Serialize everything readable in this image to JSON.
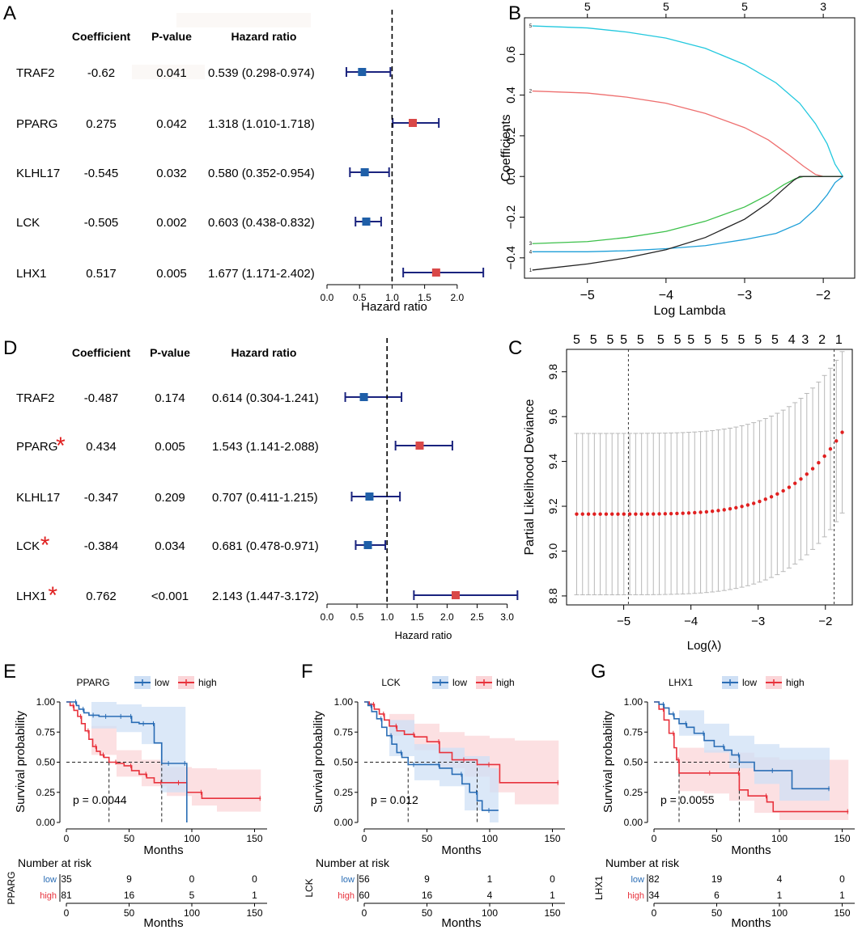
{
  "colors": {
    "low_square": "#1f5fa8",
    "high_square": "#d94848",
    "ci_line": "#1a237e",
    "km_low": "#2a6db5",
    "km_high": "#e8323c",
    "band_low": "#cfe0f5",
    "band_high": "#fbd5d8",
    "cv_dot": "#e02020",
    "cv_bar": "#b8b8b8",
    "star": "#e02020"
  },
  "chart_data": [
    {
      "panel": "A",
      "type": "forest",
      "headers": [
        "Coefficient",
        "P-value",
        "Hazard ratio"
      ],
      "rows": [
        {
          "gene": "TRAF2",
          "coef": "-0.62",
          "p": "0.041",
          "hr_text": "0.539 (0.298-0.974)",
          "hr": 0.539,
          "lo": 0.298,
          "hi": 0.974,
          "dir": "low",
          "star": false
        },
        {
          "gene": "PPARG",
          "coef": "0.275",
          "p": "0.042",
          "hr_text": "1.318 (1.010-1.718)",
          "hr": 1.318,
          "lo": 1.01,
          "hi": 1.718,
          "dir": "high",
          "star": false
        },
        {
          "gene": "KLHL17",
          "coef": "-0.545",
          "p": "0.032",
          "hr_text": "0.580 (0.352-0.954)",
          "hr": 0.58,
          "lo": 0.352,
          "hi": 0.954,
          "dir": "low",
          "star": false
        },
        {
          "gene": "LCK",
          "coef": "-0.505",
          "p": "0.002",
          "hr_text": "0.603 (0.438-0.832)",
          "hr": 0.603,
          "lo": 0.438,
          "hi": 0.832,
          "dir": "low",
          "star": false
        },
        {
          "gene": "LHX1",
          "coef": "0.517",
          "p": "0.005",
          "hr_text": "1.677 (1.171-2.402)",
          "hr": 1.677,
          "lo": 1.171,
          "hi": 2.402,
          "dir": "high",
          "star": false
        }
      ],
      "xlim": [
        0,
        2.4
      ],
      "ticks": [
        "0.0",
        "0.5",
        "1.0",
        "1.5",
        "2.0"
      ],
      "tick_values": [
        0,
        0.5,
        1,
        1.5,
        2
      ],
      "xlabel": "Hazard ratio",
      "ref": 1
    },
    {
      "panel": "B",
      "type": "line",
      "xlabel": "Log Lambda",
      "ylabel": "Coefficients",
      "xlim": [
        -5.8,
        -1.6
      ],
      "ylim": [
        -0.5,
        0.78
      ],
      "xticks": [
        -5,
        -4,
        -3,
        -2
      ],
      "xtick_labels": [
        "−5",
        "−4",
        "−3",
        "−2"
      ],
      "yticks": [
        -0.4,
        -0.2,
        0.0,
        0.2,
        0.4,
        0.6
      ],
      "ytick_labels": [
        "−0.4",
        "−0.2",
        "0.0",
        "0.2",
        "0.4",
        "0.6"
      ],
      "top_ticks": [
        -5,
        -4,
        -3,
        -2
      ],
      "top_labels": [
        "5",
        "5",
        "5",
        "3"
      ],
      "series": [
        {
          "name": "5",
          "color": "#22c8de",
          "x": [
            -5.7,
            -5.0,
            -4.5,
            -4.0,
            -3.5,
            -3.0,
            -2.6,
            -2.3,
            -2.1,
            -1.95,
            -1.85,
            -1.75
          ],
          "y": [
            0.74,
            0.73,
            0.71,
            0.68,
            0.63,
            0.55,
            0.46,
            0.36,
            0.26,
            0.16,
            0.06,
            0.0
          ]
        },
        {
          "name": "2",
          "color": "#ee6f6f",
          "x": [
            -5.7,
            -5.0,
            -4.5,
            -4.0,
            -3.5,
            -3.0,
            -2.7,
            -2.45,
            -2.25,
            -2.1,
            -2.0,
            -1.75
          ],
          "y": [
            0.42,
            0.41,
            0.39,
            0.36,
            0.31,
            0.24,
            0.18,
            0.11,
            0.05,
            0.01,
            0.0,
            0.0
          ]
        },
        {
          "name": "3",
          "color": "#3cc04a",
          "x": [
            -5.7,
            -5.0,
            -4.5,
            -4.0,
            -3.5,
            -3.0,
            -2.7,
            -2.5,
            -2.35,
            -2.25,
            -1.75
          ],
          "y": [
            -0.33,
            -0.32,
            -0.3,
            -0.27,
            -0.22,
            -0.15,
            -0.09,
            -0.04,
            -0.01,
            0.0,
            0.0
          ]
        },
        {
          "name": "4",
          "color": "#1e9fd8",
          "x": [
            -5.7,
            -5.0,
            -4.5,
            -4.0,
            -3.5,
            -3.0,
            -2.6,
            -2.3,
            -2.1,
            -1.95,
            -1.85,
            -1.75
          ],
          "y": [
            -0.37,
            -0.37,
            -0.365,
            -0.355,
            -0.34,
            -0.31,
            -0.28,
            -0.23,
            -0.16,
            -0.09,
            -0.03,
            0.0
          ]
        },
        {
          "name": "1",
          "color": "#222222",
          "x": [
            -5.7,
            -5.0,
            -4.5,
            -4.0,
            -3.5,
            -3.0,
            -2.7,
            -2.5,
            -2.38,
            -2.3,
            -1.75
          ],
          "y": [
            -0.46,
            -0.43,
            -0.4,
            -0.36,
            -0.3,
            -0.21,
            -0.13,
            -0.06,
            -0.02,
            0.0,
            0.0
          ]
        }
      ]
    },
    {
      "panel": "C",
      "type": "scatter",
      "xlabel": "Log(λ)",
      "ylabel": "Partial Likelihood Deviance",
      "xlim": [
        -5.85,
        -1.6
      ],
      "ylim": [
        8.76,
        9.9
      ],
      "xticks": [
        -5,
        -4,
        -3,
        -2
      ],
      "xtick_labels": [
        "−5",
        "−4",
        "−3",
        "−2"
      ],
      "yticks": [
        8.8,
        9.0,
        9.2,
        9.4,
        9.6,
        9.8
      ],
      "ytick_labels": [
        "8.8",
        "9.0",
        "9.2",
        "9.4",
        "9.6",
        "9.8"
      ],
      "top_ticks": [
        -5.7,
        -5.45,
        -5.2,
        -5.0,
        -4.75,
        -4.45,
        -4.2,
        -4.0,
        -3.75,
        -3.5,
        -3.25,
        -3.0,
        -2.75,
        -2.5,
        -2.3,
        -2.05,
        -1.8
      ],
      "top_labels": [
        "5",
        "5",
        "5",
        "5",
        "5",
        "5",
        "5",
        "5",
        "5",
        "5",
        "5",
        "5",
        "5",
        "4",
        "3",
        "2",
        "1"
      ],
      "x_start": -5.7,
      "x_end": -1.75,
      "n_points": 46,
      "y_min": 9.165,
      "y_max": 9.53,
      "ci_half": 0.36,
      "vlines": [
        -4.93,
        -1.87
      ]
    },
    {
      "panel": "D",
      "type": "forest",
      "headers": [
        "Coefficient",
        "P-value",
        "Hazard ratio"
      ],
      "rows": [
        {
          "gene": "TRAF2",
          "coef": "-0.487",
          "p": "0.174",
          "hr_text": "0.614 (0.304-1.241)",
          "hr": 0.614,
          "lo": 0.304,
          "hi": 1.241,
          "dir": "low",
          "star": false
        },
        {
          "gene": "PPARG",
          "coef": "0.434",
          "p": "0.005",
          "hr_text": "1.543 (1.141-2.088)",
          "hr": 1.543,
          "lo": 1.141,
          "hi": 2.088,
          "dir": "high",
          "star": true
        },
        {
          "gene": "KLHL17",
          "coef": "-0.347",
          "p": "0.209",
          "hr_text": "0.707 (0.411-1.215)",
          "hr": 0.707,
          "lo": 0.411,
          "hi": 1.215,
          "dir": "low",
          "star": false
        },
        {
          "gene": "LCK",
          "coef": "-0.384",
          "p": "0.034",
          "hr_text": "0.681 (0.478-0.971)",
          "hr": 0.681,
          "lo": 0.478,
          "hi": 0.971,
          "dir": "low",
          "star": true
        },
        {
          "gene": "LHX1",
          "coef": "0.762",
          "p": "<0.001",
          "hr_text": "2.143 (1.447-3.172)",
          "hr": 2.143,
          "lo": 1.447,
          "hi": 3.172,
          "dir": "high",
          "star": true
        }
      ],
      "xlim": [
        0,
        3.1
      ],
      "ticks": [
        "0.0",
        "0.5",
        "1.0",
        "1.5",
        "2.0",
        "2.5",
        "3.0"
      ],
      "tick_values": [
        0,
        0.5,
        1,
        1.5,
        2,
        2.5,
        3
      ],
      "xlabel": "Hazard ratio",
      "ref": 1
    },
    {
      "panel": "E",
      "type": "line",
      "gene": "PPARG",
      "legend": {
        "low": "low",
        "high": "high"
      },
      "pvalue": "p = 0.0044",
      "ylabel": "Survival probability",
      "xlabel": "Months",
      "risk_title": "Number at risk",
      "yticks": [
        "0.00",
        "0.25",
        "0.50",
        "0.75",
        "1.00"
      ],
      "ytick_values": [
        0,
        0.25,
        0.5,
        0.75,
        1
      ],
      "xticks": [
        "0",
        "50",
        "100",
        "150"
      ],
      "xtick_values": [
        0,
        50,
        100,
        150
      ],
      "xlim": [
        0,
        160
      ],
      "median_low": 76,
      "median_high": 34,
      "low": {
        "x": [
          0,
          4,
          8,
          10,
          14,
          18,
          22,
          26,
          32,
          38,
          44,
          50,
          52,
          58,
          62,
          66,
          70,
          76,
          82,
          88,
          95,
          96
        ],
        "y": [
          1.0,
          1.0,
          0.97,
          0.94,
          0.91,
          0.89,
          0.89,
          0.88,
          0.88,
          0.88,
          0.88,
          0.88,
          0.83,
          0.82,
          0.82,
          0.82,
          0.66,
          0.49,
          0.49,
          0.49,
          0.49,
          0.0
        ]
      },
      "high": {
        "x": [
          0,
          3,
          6,
          9,
          12,
          15,
          18,
          21,
          24,
          27,
          30,
          34,
          40,
          46,
          52,
          58,
          64,
          70,
          76,
          82,
          90,
          96,
          108,
          130,
          155
        ],
        "y": [
          1.0,
          0.97,
          0.93,
          0.88,
          0.82,
          0.76,
          0.69,
          0.63,
          0.59,
          0.56,
          0.54,
          0.5,
          0.49,
          0.47,
          0.43,
          0.4,
          0.37,
          0.33,
          0.33,
          0.33,
          0.33,
          0.25,
          0.2,
          0.2,
          0.2
        ]
      },
      "band_low": {
        "x": [
          0,
          20,
          40,
          60,
          75,
          95
        ],
        "lo": [
          1.0,
          0.78,
          0.75,
          0.65,
          0.25,
          0.0
        ],
        "hi": [
          1.0,
          1.0,
          0.98,
          0.96,
          0.96,
          0.96
        ]
      },
      "band_high": {
        "x": [
          0,
          20,
          40,
          60,
          80,
          100,
          120,
          155
        ],
        "lo": [
          1.0,
          0.56,
          0.38,
          0.3,
          0.22,
          0.14,
          0.09,
          0.09
        ],
        "hi": [
          1.0,
          0.8,
          0.6,
          0.52,
          0.46,
          0.45,
          0.44,
          0.44
        ]
      },
      "risk_low": [
        "35",
        "9",
        "0",
        "0"
      ],
      "risk_high": [
        "81",
        "16",
        "5",
        "1"
      ],
      "risk_low_label": "low",
      "risk_high_label": "high"
    },
    {
      "panel": "F",
      "type": "line",
      "gene": "LCK",
      "legend": {
        "low": "low",
        "high": "high"
      },
      "pvalue": "p = 0.012",
      "ylabel": "Survival probability",
      "xlabel": "Months",
      "risk_title": "Number at risk",
      "yticks": [
        "0.00",
        "0.25",
        "0.50",
        "0.75",
        "1.00"
      ],
      "ytick_values": [
        0,
        0.25,
        0.5,
        0.75,
        1
      ],
      "xticks": [
        "0",
        "50",
        "100",
        "150"
      ],
      "xtick_values": [
        0,
        50,
        100,
        150
      ],
      "xlim": [
        0,
        160
      ],
      "median_low": 35,
      "median_high": 90,
      "low": {
        "x": [
          0,
          3,
          6,
          10,
          14,
          18,
          22,
          26,
          30,
          35,
          40,
          50,
          60,
          70,
          78,
          84,
          90,
          94,
          100,
          107
        ],
        "y": [
          1.0,
          0.97,
          0.92,
          0.86,
          0.79,
          0.72,
          0.65,
          0.58,
          0.54,
          0.48,
          0.48,
          0.48,
          0.45,
          0.4,
          0.32,
          0.25,
          0.18,
          0.1,
          0.1,
          0.1
        ]
      },
      "high": {
        "x": [
          0,
          4,
          8,
          12,
          16,
          20,
          26,
          32,
          40,
          50,
          60,
          70,
          80,
          90,
          100,
          108,
          155
        ],
        "y": [
          1.0,
          0.98,
          0.94,
          0.9,
          0.85,
          0.8,
          0.76,
          0.73,
          0.71,
          0.67,
          0.58,
          0.52,
          0.52,
          0.48,
          0.48,
          0.33,
          0.33
        ]
      },
      "band_low": {
        "x": [
          0,
          20,
          40,
          60,
          80,
          100,
          107
        ],
        "lo": [
          1.0,
          0.55,
          0.35,
          0.3,
          0.1,
          0.0,
          0.0
        ],
        "hi": [
          1.0,
          0.85,
          0.65,
          0.62,
          0.55,
          0.45,
          0.45
        ]
      },
      "band_high": {
        "x": [
          0,
          20,
          40,
          60,
          80,
          100,
          120,
          155
        ],
        "lo": [
          1.0,
          0.72,
          0.6,
          0.45,
          0.38,
          0.25,
          0.15,
          0.15
        ],
        "hi": [
          1.0,
          0.9,
          0.82,
          0.75,
          0.72,
          0.7,
          0.68,
          0.68
        ]
      },
      "risk_low": [
        "56",
        "9",
        "1",
        "0"
      ],
      "risk_high": [
        "60",
        "16",
        "4",
        "1"
      ],
      "risk_low_label": "low",
      "risk_high_label": "high"
    },
    {
      "panel": "G",
      "type": "line",
      "gene": "LHX1",
      "legend": {
        "low": "low",
        "high": "high"
      },
      "pvalue": "p = 0.0055",
      "ylabel": "Survival probability",
      "xlabel": "Months",
      "risk_title": "Number at risk",
      "yticks": [
        "0.00",
        "0.25",
        "0.50",
        "0.75",
        "1.00"
      ],
      "ytick_values": [
        0,
        0.25,
        0.5,
        0.75,
        1
      ],
      "xticks": [
        "0",
        "50",
        "100",
        "150"
      ],
      "xtick_values": [
        0,
        50,
        100,
        150
      ],
      "xlim": [
        0,
        160
      ],
      "median_low": 68,
      "median_high": 20,
      "low": {
        "x": [
          0,
          4,
          8,
          12,
          16,
          20,
          26,
          32,
          40,
          48,
          56,
          62,
          68,
          80,
          95,
          110,
          140
        ],
        "y": [
          1.0,
          0.98,
          0.95,
          0.9,
          0.86,
          0.82,
          0.79,
          0.74,
          0.68,
          0.63,
          0.6,
          0.56,
          0.5,
          0.43,
          0.43,
          0.28,
          0.28
        ]
      },
      "high": {
        "x": [
          0,
          4,
          8,
          12,
          16,
          18,
          20,
          30,
          45,
          60,
          68,
          75,
          90,
          95,
          155
        ],
        "y": [
          1.0,
          0.94,
          0.85,
          0.74,
          0.62,
          0.52,
          0.41,
          0.41,
          0.41,
          0.41,
          0.27,
          0.22,
          0.17,
          0.09,
          0.09
        ]
      },
      "band_low": {
        "x": [
          0,
          20,
          40,
          60,
          80,
          100,
          140
        ],
        "lo": [
          1.0,
          0.72,
          0.58,
          0.45,
          0.32,
          0.18,
          0.14
        ],
        "hi": [
          1.0,
          0.93,
          0.82,
          0.72,
          0.65,
          0.62,
          0.58
        ]
      },
      "band_high": {
        "x": [
          0,
          20,
          40,
          60,
          80,
          100,
          155
        ],
        "lo": [
          1.0,
          0.26,
          0.24,
          0.18,
          0.08,
          0.02,
          0.02
        ],
        "hi": [
          1.0,
          0.62,
          0.6,
          0.58,
          0.54,
          0.52,
          0.52
        ]
      },
      "risk_low": [
        "82",
        "19",
        "4",
        "0"
      ],
      "risk_high": [
        "34",
        "6",
        "1",
        "1"
      ],
      "risk_low_label": "low",
      "risk_high_label": "high"
    }
  ]
}
